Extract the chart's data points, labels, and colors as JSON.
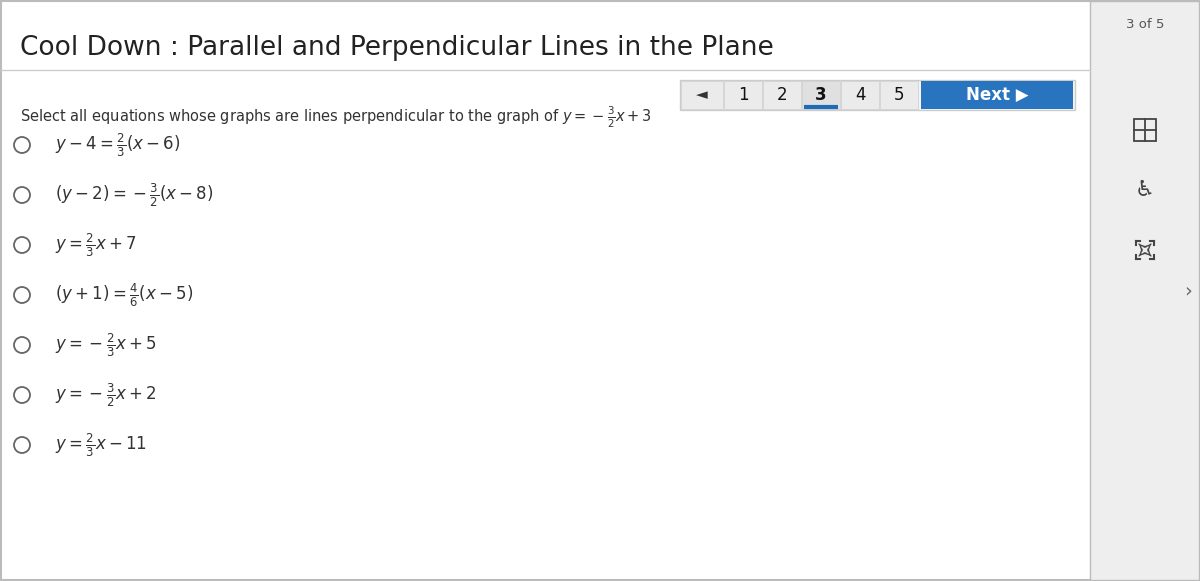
{
  "title": "Cool Down : Parallel and Perpendicular Lines in the Plane",
  "page_indicator": "3 of 5",
  "prompt": "Select all equations whose graphs are lines perpendicular to the graph of $y = -\\frac{3}{2}x + 3$",
  "options": [
    "$y - 4 = \\frac{2}{3}(x - 6)$",
    "$(y - 2) = -\\frac{3}{2}(x - 8)$",
    "$y = \\frac{2}{3}x + 7$",
    "$(y + 1) = \\frac{4}{6}(x - 5)$",
    "$y = -\\frac{2}{3}x + 5$",
    "$y = -\\frac{3}{2}x + 2$",
    "$y = \\frac{2}{3}x - 11$"
  ],
  "nav_numbers": [
    "1",
    "2",
    "3",
    "4",
    "5"
  ],
  "current_page_idx": 2,
  "bg_color": "#ffffff",
  "title_color": "#222222",
  "prompt_color": "#333333",
  "option_color": "#333333",
  "nav_current_underline": "#1e6bb8",
  "next_btn_color": "#2874be",
  "next_btn_text": "Next ▶",
  "sidebar_bg": "#eeeeee",
  "border_color": "#cccccc",
  "title_fontsize": 19,
  "prompt_fontsize": 10.5,
  "option_fontsize": 12,
  "nav_fontsize": 12
}
